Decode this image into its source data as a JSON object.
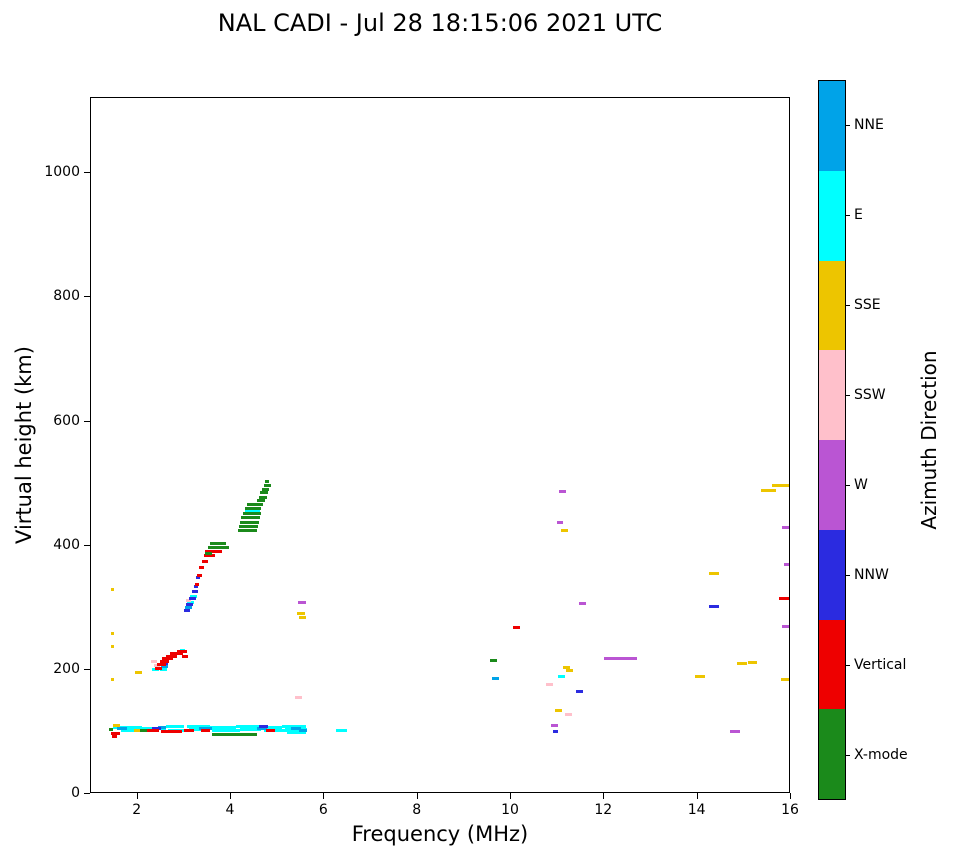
{
  "chart_data": {
    "type": "scatter",
    "title": "NAL CADI - Jul 28 18:15:06 2021 UTC",
    "xlabel": "Frequency (MHz)",
    "ylabel": "Virtual height (km)",
    "xlim": [
      1,
      16
    ],
    "ylim": [
      0,
      1121
    ],
    "xticks": [
      2,
      4,
      6,
      8,
      10,
      12,
      14,
      16
    ],
    "yticks": [
      0,
      200,
      400,
      600,
      800,
      1000
    ],
    "grid": false,
    "legend_position": "right-colorbar",
    "colorbar": {
      "label": "Azimuth Direction",
      "categories": [
        {
          "name": "X-mode",
          "color": "#1b8a1b"
        },
        {
          "name": "Vertical",
          "color": "#ee0000"
        },
        {
          "name": "NNW",
          "color": "#2b2be0"
        },
        {
          "name": "W",
          "color": "#ba55d3"
        },
        {
          "name": "SSW",
          "color": "#ffc0cb"
        },
        {
          "name": "SSE",
          "color": "#edc500"
        },
        {
          "name": "E",
          "color": "#00ffff"
        },
        {
          "name": "NNE",
          "color": "#00a3e8"
        }
      ]
    },
    "series": [
      {
        "name": "E",
        "color": "#00ffff",
        "segments": [
          [
            1.48,
            2.1,
            107
          ],
          [
            1.65,
            1.95,
            102
          ],
          [
            2.1,
            2.6,
            105
          ],
          [
            2.6,
            3.0,
            108
          ],
          [
            2.65,
            3.05,
            103
          ],
          [
            3.05,
            3.55,
            109
          ],
          [
            3.1,
            3.5,
            104
          ],
          [
            3.55,
            4.1,
            107
          ],
          [
            3.6,
            4.2,
            102
          ],
          [
            4.1,
            4.6,
            109
          ],
          [
            4.2,
            4.65,
            104
          ],
          [
            4.6,
            5.1,
            107
          ],
          [
            4.7,
            5.2,
            102
          ],
          [
            5.1,
            5.6,
            109
          ],
          [
            5.15,
            5.62,
            104
          ],
          [
            5.2,
            5.6,
            99
          ],
          [
            6.25,
            6.48,
            102
          ],
          [
            2.3,
            2.46,
            200
          ],
          [
            2.48,
            2.62,
            201
          ],
          [
            2.9,
            3.02,
            232
          ],
          [
            3.05,
            3.2,
            308
          ],
          [
            3.12,
            3.28,
            318
          ],
          [
            4.3,
            4.62,
            457
          ],
          [
            11.0,
            11.15,
            190
          ]
        ]
      },
      {
        "name": "NNE",
        "color": "#00a3e8",
        "segments": [
          [
            1.55,
            1.78,
            106
          ],
          [
            2.44,
            2.6,
            107
          ],
          [
            3.32,
            3.6,
            106
          ],
          [
            4.55,
            4.78,
            105
          ],
          [
            5.28,
            5.5,
            106
          ],
          [
            5.45,
            5.62,
            102
          ],
          [
            2.5,
            2.64,
            206
          ],
          [
            3.02,
            3.16,
            300
          ],
          [
            9.6,
            9.75,
            186
          ]
        ]
      },
      {
        "name": "SSE",
        "color": "#edc500",
        "segments": [
          [
            1.42,
            1.5,
            330
          ],
          [
            1.42,
            1.5,
            258
          ],
          [
            1.42,
            1.5,
            237
          ],
          [
            1.42,
            1.5,
            185
          ],
          [
            1.95,
            2.1,
            196
          ],
          [
            1.48,
            1.62,
            110
          ],
          [
            1.92,
            2.1,
            103
          ],
          [
            5.42,
            5.58,
            291
          ],
          [
            5.45,
            5.6,
            284
          ],
          [
            10.95,
            11.1,
            135
          ],
          [
            11.08,
            11.22,
            425
          ],
          [
            11.12,
            11.26,
            204
          ],
          [
            11.18,
            11.32,
            199
          ],
          [
            13.95,
            14.15,
            190
          ],
          [
            14.25,
            14.45,
            355
          ],
          [
            14.85,
            15.05,
            210
          ],
          [
            15.08,
            15.28,
            212
          ],
          [
            15.35,
            15.68,
            489
          ],
          [
            15.6,
            15.97,
            497
          ],
          [
            15.78,
            16.0,
            185
          ]
        ]
      },
      {
        "name": "SSW",
        "color": "#ffc0cb",
        "segments": [
          [
            2.28,
            2.42,
            214
          ],
          [
            2.34,
            2.48,
            207
          ],
          [
            3.04,
            3.14,
            312
          ],
          [
            5.38,
            5.52,
            155
          ],
          [
            10.75,
            10.9,
            176
          ],
          [
            11.15,
            11.3,
            128
          ]
        ]
      },
      {
        "name": "W",
        "color": "#ba55d3",
        "segments": [
          [
            5.44,
            5.6,
            308
          ],
          [
            10.85,
            11.0,
            110
          ],
          [
            10.98,
            11.12,
            437
          ],
          [
            11.02,
            11.18,
            487
          ],
          [
            11.45,
            11.6,
            307
          ],
          [
            12.0,
            12.7,
            218
          ],
          [
            14.7,
            14.9,
            100
          ],
          [
            15.8,
            16.0,
            430
          ],
          [
            15.85,
            16.0,
            369
          ],
          [
            15.8,
            16.0,
            270
          ]
        ]
      },
      {
        "name": "NNW",
        "color": "#2b2be0",
        "segments": [
          [
            2.3,
            2.5,
            105
          ],
          [
            4.6,
            4.8,
            108
          ],
          [
            2.52,
            2.66,
            210
          ],
          [
            3.0,
            3.12,
            296
          ],
          [
            3.04,
            3.18,
            305
          ],
          [
            3.1,
            3.24,
            315
          ],
          [
            3.16,
            3.3,
            326
          ],
          [
            3.2,
            3.3,
            334
          ],
          [
            3.24,
            3.34,
            348
          ],
          [
            10.9,
            11.0,
            100
          ],
          [
            11.4,
            11.55,
            165
          ],
          [
            14.25,
            14.45,
            302
          ]
        ]
      },
      {
        "name": "Vertical",
        "color": "#ee0000",
        "segments": [
          [
            1.42,
            1.62,
            97
          ],
          [
            1.45,
            1.55,
            92
          ],
          [
            2.2,
            2.45,
            102
          ],
          [
            2.5,
            2.95,
            101
          ],
          [
            3.0,
            3.2,
            102
          ],
          [
            3.35,
            3.55,
            103
          ],
          [
            4.75,
            4.95,
            102
          ],
          [
            2.38,
            2.52,
            203
          ],
          [
            2.42,
            2.6,
            208
          ],
          [
            2.48,
            2.68,
            213
          ],
          [
            2.52,
            2.75,
            218
          ],
          [
            2.6,
            2.85,
            222
          ],
          [
            2.7,
            2.98,
            226
          ],
          [
            2.85,
            3.05,
            230
          ],
          [
            2.95,
            3.08,
            222
          ],
          [
            3.22,
            3.32,
            338
          ],
          [
            3.28,
            3.38,
            352
          ],
          [
            3.32,
            3.42,
            365
          ],
          [
            3.38,
            3.5,
            375
          ],
          [
            3.42,
            3.65,
            384
          ],
          [
            3.45,
            3.8,
            390
          ],
          [
            10.05,
            10.2,
            268
          ],
          [
            15.75,
            16.0,
            315
          ]
        ]
      },
      {
        "name": "X-mode",
        "color": "#1b8a1b",
        "segments": [
          [
            1.38,
            1.48,
            104
          ],
          [
            2.05,
            2.2,
            103
          ],
          [
            3.6,
            4.55,
            96
          ],
          [
            3.45,
            3.6,
            388
          ],
          [
            3.5,
            3.95,
            397
          ],
          [
            3.55,
            3.9,
            404
          ],
          [
            4.15,
            4.55,
            424
          ],
          [
            4.18,
            4.58,
            431
          ],
          [
            4.2,
            4.6,
            438
          ],
          [
            4.22,
            4.62,
            445
          ],
          [
            4.25,
            4.65,
            452
          ],
          [
            4.3,
            4.65,
            460
          ],
          [
            4.35,
            4.68,
            466
          ],
          [
            4.55,
            4.72,
            472
          ],
          [
            4.6,
            4.76,
            478
          ],
          [
            4.63,
            4.8,
            485
          ],
          [
            4.66,
            4.82,
            491
          ],
          [
            4.7,
            4.85,
            497
          ],
          [
            4.72,
            4.82,
            503
          ],
          [
            9.55,
            9.7,
            215
          ]
        ]
      }
    ]
  }
}
